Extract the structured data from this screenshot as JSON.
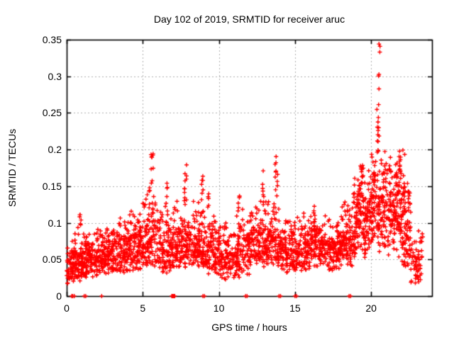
{
  "chart_data": {
    "type": "scatter",
    "title": "Day 102 of 2019, SRMTID for receiver aruc",
    "xlabel": "GPS time / hours",
    "ylabel": "SRMTID / TECUs",
    "xlim": [
      0,
      24
    ],
    "ylim": [
      0,
      0.35
    ],
    "xtick_values": [
      0,
      5,
      10,
      15,
      20
    ],
    "xtick_labels": [
      "0",
      "5",
      "10",
      "15",
      "20"
    ],
    "ytick_values": [
      0,
      0.05,
      0.1,
      0.15,
      0.2,
      0.25,
      0.3,
      0.35
    ],
    "ytick_labels": [
      "0",
      "0.05",
      "0.1",
      "0.15",
      "0.2",
      "0.25",
      "0.3",
      "0.35"
    ],
    "grid": {
      "show": true,
      "color": "#b0b0b0"
    },
    "frame_color": "#000000",
    "marker": {
      "shape": "plus",
      "color": "#ff0000",
      "size": 6,
      "line_width": 1.4
    },
    "series": [
      {
        "name": "SRMTID",
        "color": "#ff0000"
      }
    ],
    "seed": 102,
    "baseline_segments": [
      {
        "h0": 0.0,
        "h1": 0.5,
        "n": 60,
        "ymin": 0.02,
        "ymax": 0.08,
        "bias": 1.4
      },
      {
        "h0": 0.5,
        "h1": 1.0,
        "n": 70,
        "ymin": 0.02,
        "ymax": 0.1,
        "bias": 1.5
      },
      {
        "h0": 1.0,
        "h1": 2.0,
        "n": 130,
        "ymin": 0.025,
        "ymax": 0.095,
        "bias": 1.4
      },
      {
        "h0": 2.0,
        "h1": 3.0,
        "n": 120,
        "ymin": 0.03,
        "ymax": 0.1,
        "bias": 1.4
      },
      {
        "h0": 3.0,
        "h1": 4.0,
        "n": 120,
        "ymin": 0.03,
        "ymax": 0.11,
        "bias": 1.5
      },
      {
        "h0": 4.0,
        "h1": 5.0,
        "n": 125,
        "ymin": 0.035,
        "ymax": 0.13,
        "bias": 1.5
      },
      {
        "h0": 5.0,
        "h1": 6.0,
        "n": 120,
        "ymin": 0.04,
        "ymax": 0.15,
        "bias": 1.7
      },
      {
        "h0": 6.0,
        "h1": 7.0,
        "n": 115,
        "ymin": 0.03,
        "ymax": 0.13,
        "bias": 1.5
      },
      {
        "h0": 7.0,
        "h1": 8.0,
        "n": 120,
        "ymin": 0.035,
        "ymax": 0.15,
        "bias": 1.7
      },
      {
        "h0": 8.0,
        "h1": 9.0,
        "n": 120,
        "ymin": 0.04,
        "ymax": 0.14,
        "bias": 1.6
      },
      {
        "h0": 9.0,
        "h1": 10.0,
        "n": 110,
        "ymin": 0.03,
        "ymax": 0.13,
        "bias": 1.6
      },
      {
        "h0": 10.0,
        "h1": 11.0,
        "n": 100,
        "ymin": 0.02,
        "ymax": 0.105,
        "bias": 1.4
      },
      {
        "h0": 11.0,
        "h1": 12.0,
        "n": 110,
        "ymin": 0.025,
        "ymax": 0.12,
        "bias": 1.5
      },
      {
        "h0": 12.0,
        "h1": 13.0,
        "n": 110,
        "ymin": 0.04,
        "ymax": 0.13,
        "bias": 1.5
      },
      {
        "h0": 13.0,
        "h1": 14.0,
        "n": 120,
        "ymin": 0.04,
        "ymax": 0.15,
        "bias": 1.6
      },
      {
        "h0": 14.0,
        "h1": 15.0,
        "n": 115,
        "ymin": 0.03,
        "ymax": 0.115,
        "bias": 1.4
      },
      {
        "h0": 15.0,
        "h1": 16.0,
        "n": 110,
        "ymin": 0.035,
        "ymax": 0.115,
        "bias": 1.4
      },
      {
        "h0": 16.0,
        "h1": 17.0,
        "n": 115,
        "ymin": 0.04,
        "ymax": 0.12,
        "bias": 1.4
      },
      {
        "h0": 17.0,
        "h1": 18.0,
        "n": 110,
        "ymin": 0.035,
        "ymax": 0.115,
        "bias": 1.4
      },
      {
        "h0": 18.0,
        "h1": 19.0,
        "n": 115,
        "ymin": 0.04,
        "ymax": 0.14,
        "bias": 1.6
      },
      {
        "h0": 19.0,
        "h1": 20.0,
        "n": 140,
        "ymin": 0.05,
        "ymax": 0.185,
        "bias": 1.15
      },
      {
        "h0": 20.0,
        "h1": 21.0,
        "n": 150,
        "ymin": 0.06,
        "ymax": 0.21,
        "bias": 1.15
      },
      {
        "h0": 21.0,
        "h1": 22.0,
        "n": 140,
        "ymin": 0.05,
        "ymax": 0.2,
        "bias": 1.2
      },
      {
        "h0": 22.0,
        "h1": 22.6,
        "n": 85,
        "ymin": 0.04,
        "ymax": 0.19,
        "bias": 1.5
      },
      {
        "h0": 22.6,
        "h1": 23.4,
        "n": 60,
        "ymin": 0.01,
        "ymax": 0.09,
        "bias": 1.2
      }
    ],
    "spike_columns": [
      {
        "x": 0.05,
        "spread": 0.04,
        "n": 5,
        "ymin": 0.01,
        "ymax": 0.05
      },
      {
        "x": 0.9,
        "spread": 0.05,
        "n": 6,
        "ymin": 0.095,
        "ymax": 0.122
      },
      {
        "x": 5.62,
        "spread": 0.08,
        "n": 9,
        "ymin": 0.145,
        "ymax": 0.2
      },
      {
        "x": 6.55,
        "spread": 0.07,
        "n": 5,
        "ymin": 0.12,
        "ymax": 0.155
      },
      {
        "x": 7.8,
        "spread": 0.1,
        "n": 10,
        "ymin": 0.13,
        "ymax": 0.185
      },
      {
        "x": 8.9,
        "spread": 0.06,
        "n": 7,
        "ymin": 0.12,
        "ymax": 0.165
      },
      {
        "x": 9.3,
        "spread": 0.07,
        "n": 5,
        "ymin": 0.11,
        "ymax": 0.14
      },
      {
        "x": 11.3,
        "spread": 0.06,
        "n": 6,
        "ymin": 0.11,
        "ymax": 0.152
      },
      {
        "x": 12.9,
        "spread": 0.06,
        "n": 7,
        "ymin": 0.12,
        "ymax": 0.172
      },
      {
        "x": 13.78,
        "spread": 0.09,
        "n": 10,
        "ymin": 0.14,
        "ymax": 0.2
      },
      {
        "x": 16.3,
        "spread": 0.08,
        "n": 5,
        "ymin": 0.1,
        "ymax": 0.128
      },
      {
        "x": 18.85,
        "spread": 0.09,
        "n": 8,
        "ymin": 0.12,
        "ymax": 0.175
      },
      {
        "x": 19.35,
        "spread": 0.09,
        "n": 8,
        "ymin": 0.13,
        "ymax": 0.19
      },
      {
        "x": 20.45,
        "spread": 0.07,
        "n": 16,
        "ymin": 0.195,
        "ymax": 0.285
      },
      {
        "x": 20.5,
        "spread": 0.04,
        "n": 2,
        "ymin": 0.298,
        "ymax": 0.306
      },
      {
        "x": 20.55,
        "spread": 0.04,
        "n": 3,
        "ymin": 0.332,
        "ymax": 0.345
      },
      {
        "x": 21.9,
        "spread": 0.07,
        "n": 10,
        "ymin": 0.15,
        "ymax": 0.205
      },
      {
        "x": 22.15,
        "spread": 0.07,
        "n": 8,
        "ymin": 0.14,
        "ymax": 0.2
      }
    ],
    "zero_value_hours": [
      0.33,
      0.4,
      0.5,
      1.15,
      1.25,
      2.3,
      6.9,
      6.95,
      7.0,
      7.05,
      7.1,
      8.95,
      9.05,
      11.75,
      11.85,
      13.95,
      14.05,
      15.0,
      15.1,
      18.55,
      18.65
    ]
  }
}
